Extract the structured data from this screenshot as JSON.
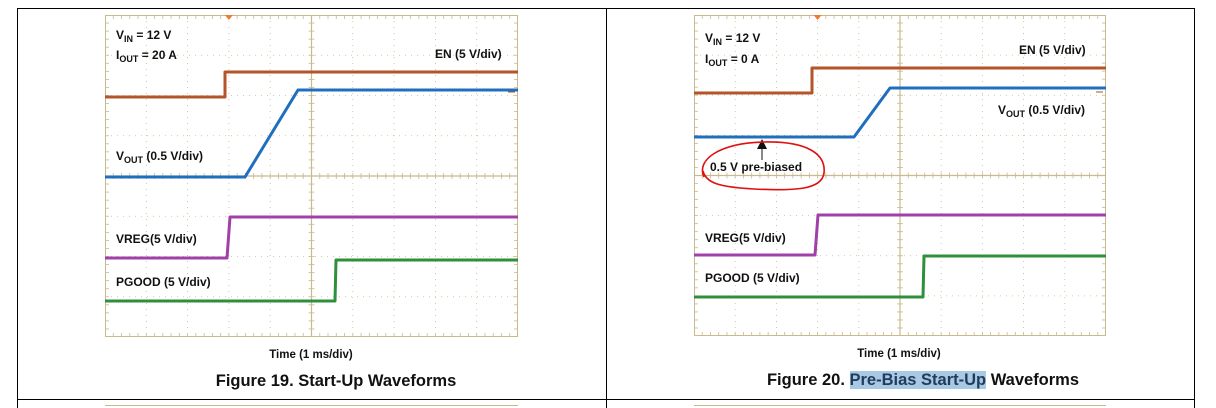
{
  "figures": [
    {
      "vin_label": "V",
      "vin_sub": "IN",
      "vin_value": "= 12 V",
      "iout_label": "I",
      "iout_sub": "OUT",
      "iout_value": "= 20 A",
      "en_label": "EN (5 V/div)",
      "vout_label": "V",
      "vout_sub": "OUT",
      "vout_scale": "(0.5 V/div)",
      "vreg_label": "VREG(5 V/div)",
      "pgood_label": "PGOOD (5 V/div)",
      "time_label": "Time (1 ms/div)",
      "caption": "Figure 19. Start-Up Waveforms"
    },
    {
      "vin_label": "V",
      "vin_sub": "IN",
      "vin_value": "= 12 V",
      "iout_label": "I",
      "iout_sub": "OUT",
      "iout_value": "= 0 A",
      "en_label": "EN (5 V/div)",
      "vout_label": "V",
      "vout_sub": "OUT",
      "vout_scale": "(0.5 V/div)",
      "annotation": "0.5 V pre-biased",
      "vreg_label": "VREG(5 V/div)",
      "pgood_label": "PGOOD (5 V/div)",
      "time_label": "Time (1 ms/div)",
      "caption_prefix": "Figure 20. ",
      "caption_highlight": "Pre-Bias Start-Up",
      "caption_suffix": " Waveforms"
    }
  ],
  "colors": {
    "en": "#b5532a",
    "vout": "#1f6fbf",
    "vreg": "#a040a8",
    "pgood": "#2f8f3a",
    "grid": "#c9b98c",
    "annotation_circle": "#e01010",
    "highlight": "#a9c8e4"
  }
}
